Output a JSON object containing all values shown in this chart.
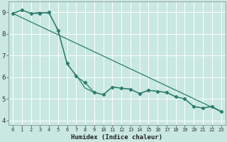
{
  "xlabel": "Humidex (Indice chaleur)",
  "background_color": "#c8e8e0",
  "plot_bg_color": "#c8e8e0",
  "grid_color": "#ffffff",
  "line_color": "#2d7d6e",
  "ylim": [
    3.8,
    9.5
  ],
  "xlim": [
    -0.5,
    23.5
  ],
  "yticks": [
    4,
    5,
    6,
    7,
    8,
    9
  ],
  "xticks": [
    0,
    1,
    2,
    3,
    4,
    5,
    6,
    7,
    8,
    9,
    10,
    11,
    12,
    13,
    14,
    15,
    16,
    17,
    18,
    19,
    20,
    21,
    22,
    23
  ],
  "line1_x": [
    0,
    1,
    2,
    3,
    4,
    5,
    6,
    7,
    8,
    9,
    10,
    11,
    12,
    13,
    14,
    15,
    16,
    17,
    18,
    19,
    20,
    21,
    22,
    23
  ],
  "line1_y": [
    8.95,
    9.1,
    8.95,
    8.95,
    9.0,
    8.15,
    6.65,
    6.05,
    5.75,
    5.3,
    5.2,
    5.55,
    5.5,
    5.45,
    5.25,
    5.4,
    5.35,
    5.3,
    5.1,
    5.0,
    4.65,
    4.58,
    4.65,
    4.42
  ],
  "line2_x": [
    0,
    1,
    2,
    3,
    4,
    5,
    6,
    7,
    8,
    9,
    10,
    11,
    12,
    13,
    14,
    15,
    16,
    17,
    18,
    19,
    20,
    21,
    22,
    23
  ],
  "line2_y": [
    8.95,
    9.1,
    8.95,
    9.0,
    8.95,
    8.2,
    6.6,
    6.1,
    5.5,
    5.3,
    5.2,
    5.55,
    5.5,
    5.45,
    5.25,
    5.4,
    5.35,
    5.3,
    5.1,
    5.0,
    4.65,
    4.58,
    4.65,
    4.42
  ],
  "line3_x": [
    0,
    23
  ],
  "line3_y": [
    8.95,
    4.42
  ]
}
